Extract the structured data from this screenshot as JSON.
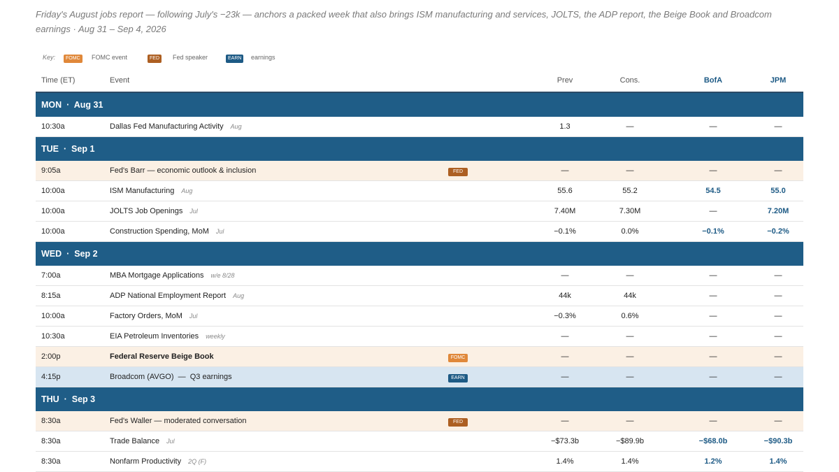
{
  "subtitle": "Friday's August jobs report — following July's −23k — anchors a packed week that also brings ISM manufacturing and services, JOLTS, the ADP report, the Beige Book and Broadcom earnings · Aug 31 – Sep 4, 2026",
  "key": {
    "label": "Key:",
    "items": [
      {
        "tag": "FOMC",
        "text": "FOMC event"
      },
      {
        "tag": "FED",
        "text": "Fed speaker"
      },
      {
        "tag": "EARN",
        "text": "earnings"
      }
    ]
  },
  "tag_styles": {
    "FOMC": {
      "color": "#e0883a",
      "row": "#fbf0e4"
    },
    "FED": {
      "color": "#ad5f22",
      "row": "#fbf0e4"
    },
    "EARN": {
      "color": "#1d5a85",
      "row": "#d7e5f1"
    }
  },
  "header": [
    "Time (ET)",
    "Event",
    "Prev",
    "Cons.",
    "BofA",
    "JPM"
  ],
  "days": [
    {
      "label": "MON  ·  Aug 31",
      "rows": [
        {
          "time": "10:30a",
          "event": "Dallas Fed Manufacturing Activity",
          "period": "Aug",
          "prev": "1.3",
          "cons": "—",
          "bofa": "—",
          "jpm": "—"
        }
      ]
    },
    {
      "label": "TUE  ·  Sep 1",
      "rows": [
        {
          "time": "9:05a",
          "event": "Fed's Barr — economic outlook & inclusion",
          "tag": "FED",
          "prev": "—",
          "cons": "—",
          "bofa": "—",
          "jpm": "—"
        },
        {
          "time": "10:00a",
          "event": "ISM Manufacturing",
          "period": "Aug",
          "prev": "55.6",
          "cons": "55.2",
          "bofa": "54.5",
          "jpm": "55.0"
        },
        {
          "time": "10:00a",
          "event": "JOLTS Job Openings",
          "period": "Jul",
          "prev": "7.40M",
          "cons": "7.30M",
          "bofa": "—",
          "jpm": "7.20M"
        },
        {
          "time": "10:00a",
          "event": "Construction Spending, MoM",
          "period": "Jul",
          "prev": "−0.1%",
          "cons": "0.0%",
          "bofa": "−0.1%",
          "jpm": "−0.2%"
        }
      ]
    },
    {
      "label": "WED  ·  Sep 2",
      "rows": [
        {
          "time": "7:00a",
          "event": "MBA Mortgage Applications",
          "period": "w/e 8/28",
          "prev": "—",
          "cons": "—",
          "bofa": "—",
          "jpm": "—"
        },
        {
          "time": "8:15a",
          "event": "ADP National Employment Report",
          "period": "Aug",
          "prev": "44k",
          "cons": "44k",
          "bofa": "—",
          "jpm": "—"
        },
        {
          "time": "10:00a",
          "event": "Factory Orders, MoM",
          "period": "Jul",
          "prev": "−0.3%",
          "cons": "0.6%",
          "bofa": "—",
          "jpm": "—"
        },
        {
          "time": "10:30a",
          "event": "EIA Petroleum Inventories",
          "period": "weekly",
          "prev": "—",
          "cons": "—",
          "bofa": "—",
          "jpm": "—"
        },
        {
          "time": "2:00p",
          "event": "Federal Reserve Beige Book",
          "bold": true,
          "tag": "FOMC",
          "prev": "—",
          "cons": "—",
          "bofa": "—",
          "jpm": "—"
        },
        {
          "time": "4:15p",
          "event": "Broadcom (AVGO)  —  Q3 earnings",
          "tag": "EARN",
          "prev": "—",
          "cons": "—",
          "bofa": "—",
          "jpm": "—"
        }
      ]
    },
    {
      "label": "THU  ·  Sep 3",
      "rows": [
        {
          "time": "8:30a",
          "event": "Fed's Waller — moderated conversation",
          "tag": "FED",
          "prev": "—",
          "cons": "—",
          "bofa": "—",
          "jpm": "—"
        },
        {
          "time": "8:30a",
          "event": "Trade Balance",
          "period": "Jul",
          "prev": "−$73.3b",
          "cons": "−$89.9b",
          "bofa": "−$68.0b",
          "jpm": "−$90.3b"
        },
        {
          "time": "8:30a",
          "event": "Nonfarm Productivity",
          "period": "2Q (F)",
          "prev": "1.4%",
          "cons": "1.4%",
          "bofa": "1.2%",
          "jpm": "1.4%"
        }
      ]
    }
  ]
}
